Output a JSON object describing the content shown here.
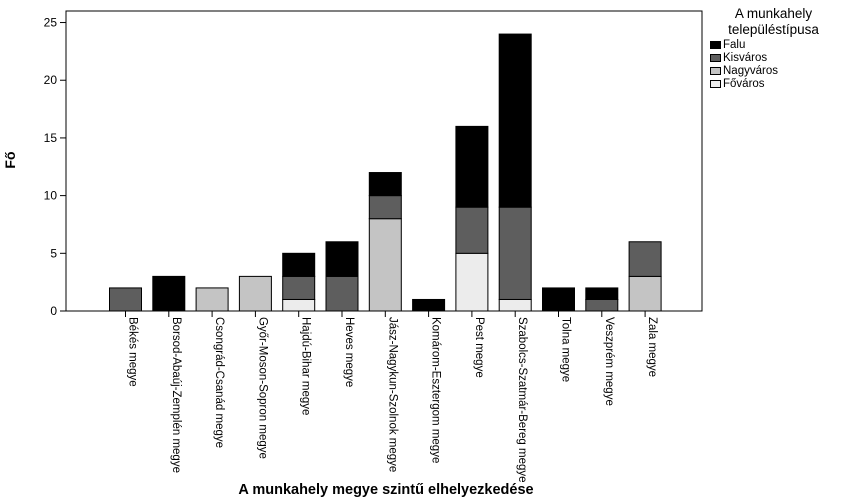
{
  "chart_data": {
    "type": "bar",
    "stacked": true,
    "xlabel": "A munkahely megye szintű elhelyezkedése",
    "ylabel": "Fő",
    "ylim": [
      0,
      26
    ],
    "yticks": [
      0,
      5,
      10,
      15,
      20,
      25
    ],
    "grid": false,
    "legend_position": "right",
    "legend_title": "A munkahely településtípusa",
    "categories": [
      "Békés megye",
      "Borsod-Abaúj-Zemplén megye",
      "Csongrád-Csanád megye",
      "Győr-Moson-Sopron megye",
      "Hajdú-Bihar megye",
      "Heves megye",
      "Jász-Nagykun-Szolnok megye",
      "Komárom-Esztergom megye",
      "Pest megye",
      "Szabolcs-Szatmár-Bereg megye",
      "Tolna megye",
      "Veszprém megye",
      "Zala megye"
    ],
    "series": [
      {
        "name": "Főváros",
        "color": "#ececec",
        "values": [
          0,
          0,
          0,
          0,
          1,
          0,
          0,
          0,
          5,
          1,
          0,
          0,
          0
        ]
      },
      {
        "name": "Nagyváros",
        "color": "#c4c4c4",
        "values": [
          0,
          0,
          2,
          3,
          0,
          0,
          8,
          0,
          0,
          0,
          0,
          0,
          3
        ]
      },
      {
        "name": "Kisváros",
        "color": "#5e5e5e",
        "values": [
          2,
          0,
          0,
          0,
          2,
          3,
          2,
          0,
          4,
          8,
          0,
          1,
          3
        ]
      },
      {
        "name": "Falu",
        "color": "#000000",
        "values": [
          0,
          3,
          0,
          0,
          2,
          3,
          2,
          1,
          7,
          15,
          2,
          1,
          0
        ]
      }
    ],
    "legend_order": [
      "Falu",
      "Kisváros",
      "Nagyváros",
      "Főváros"
    ]
  }
}
